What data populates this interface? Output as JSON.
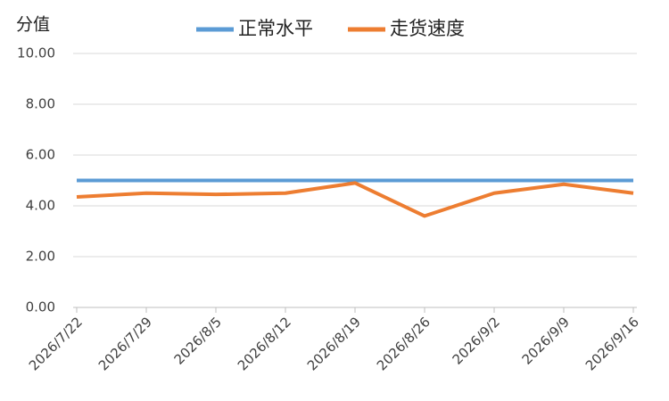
{
  "chart_data": {
    "type": "line",
    "y_label": "分值",
    "categories": [
      "2026/7/22",
      "2026/7/29",
      "2026/8/5",
      "2026/8/12",
      "2026/8/19",
      "2026/8/26",
      "2026/9/2",
      "2026/9/9",
      "2026/9/16"
    ],
    "series": [
      {
        "name": "正常水平",
        "color": "#5b9bd5",
        "values": [
          5,
          5,
          5,
          5,
          5,
          5,
          5,
          5,
          5
        ]
      },
      {
        "name": "走货速度",
        "color": "#ed7d31",
        "values": [
          4.35,
          4.5,
          4.45,
          4.5,
          4.9,
          3.6,
          4.5,
          4.85,
          4.5
        ]
      }
    ],
    "ylim": [
      0,
      10
    ],
    "yticks": [
      {
        "value": 0,
        "label": "0.00"
      },
      {
        "value": 2,
        "label": "2.00"
      },
      {
        "value": 4,
        "label": "4.00"
      },
      {
        "value": 6,
        "label": "6.00"
      },
      {
        "value": 8,
        "label": "8.00"
      },
      {
        "value": 10,
        "label": "10.00"
      }
    ],
    "grid": true,
    "legend": "top"
  }
}
